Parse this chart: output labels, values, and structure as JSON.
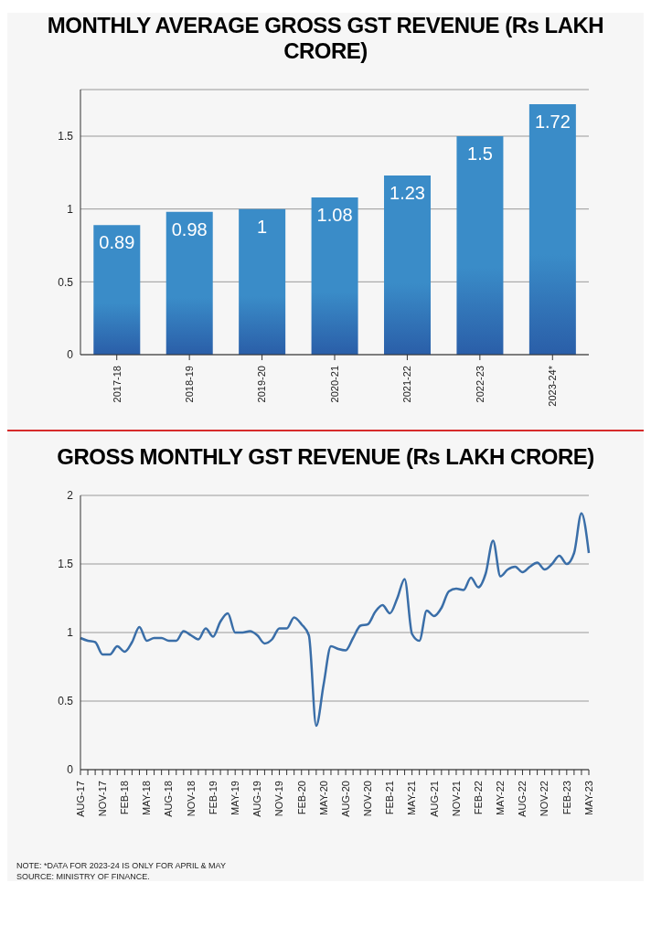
{
  "chart_data": [
    {
      "type": "bar",
      "title": "MONTHLY AVERAGE GROSS GST REVENUE (Rs LAKH CRORE)",
      "categories": [
        "2017-18",
        "2018-19",
        "2019-20",
        "2020-21",
        "2021-22",
        "2022-23",
        "2023-24*"
      ],
      "values": [
        0.89,
        0.98,
        1,
        1.08,
        1.23,
        1.5,
        1.72
      ],
      "color": "#3a8cc8",
      "ylim": [
        0,
        1.82
      ],
      "yticks": [
        0,
        0.5,
        1,
        1.5
      ],
      "grid": "y",
      "data_labels": true
    },
    {
      "type": "line",
      "title": "GROSS MONTHLY GST REVENUE (Rs LAKH CRORE)",
      "categories": [
        "AUG-17",
        null,
        null,
        "NOV-17",
        null,
        null,
        "FEB-18",
        null,
        null,
        "MAY-18",
        null,
        null,
        "AUG-18",
        null,
        null,
        "NOV-18",
        null,
        null,
        "FEB-19",
        null,
        null,
        "MAY-19",
        null,
        null,
        "AUG-19",
        null,
        null,
        "NOV-19",
        null,
        null,
        "FEB-20",
        null,
        null,
        "MAY-20",
        null,
        null,
        "AUG-20",
        null,
        null,
        "NOV-20",
        null,
        null,
        "FEB-21",
        null,
        null,
        "MAY-21",
        null,
        null,
        "AUG-21",
        null,
        null,
        "NOV-21",
        null,
        null,
        "FEB-22",
        null,
        null,
        "MAY-22",
        null,
        null,
        "AUG-22",
        null,
        null,
        "NOV-22",
        null,
        null,
        "FEB-23",
        null,
        null,
        "MAY-23"
      ],
      "values": [
        0.96,
        0.94,
        0.93,
        0.84,
        0.84,
        0.9,
        0.86,
        0.93,
        1.04,
        0.94,
        0.96,
        0.96,
        0.94,
        0.94,
        1.01,
        0.98,
        0.95,
        1.03,
        0.97,
        1.08,
        1.14,
        1.0,
        1.0,
        1.01,
        0.98,
        0.92,
        0.95,
        1.03,
        1.03,
        1.11,
        1.06,
        0.98,
        0.32,
        0.62,
        0.9,
        0.88,
        0.87,
        0.96,
        1.05,
        1.06,
        1.15,
        1.2,
        1.14,
        1.25,
        1.39,
        0.99,
        0.94,
        1.16,
        1.12,
        1.18,
        1.3,
        1.32,
        1.31,
        1.4,
        1.33,
        1.43,
        1.67,
        1.41,
        1.46,
        1.48,
        1.44,
        1.48,
        1.51,
        1.46,
        1.5,
        1.56,
        1.5,
        1.58,
        1.87,
        1.58
      ],
      "color": "#3a6ea8",
      "ylim": [
        0,
        2
      ],
      "yticks": [
        0,
        0.5,
        1,
        1.5,
        2
      ],
      "grid": "y",
      "marker": "none",
      "line_style": "solid",
      "annotations": [
        "NOTE:  *DATA FOR 2023-24 IS ONLY FOR APRIL & MAY",
        "SOURCE:  MINISTRY OF FINANCE."
      ]
    }
  ]
}
